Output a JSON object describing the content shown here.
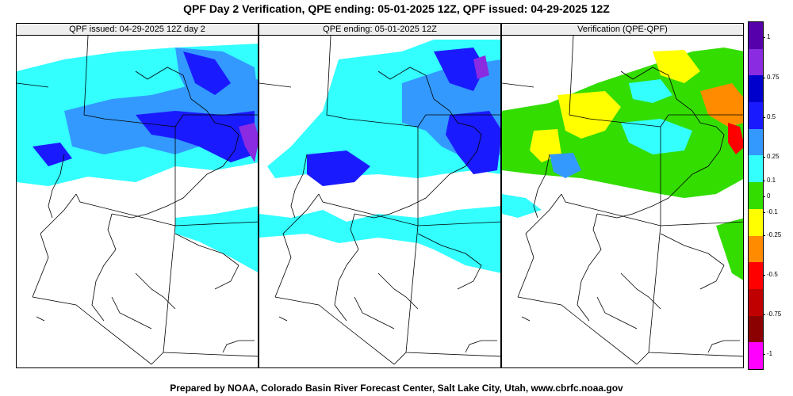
{
  "title": "QPF Day 2 Verification, QPE ending: 05-01-2025 12Z, QPF issued: 04-29-2025 12Z",
  "footer": "Prepared by NOAA, Colorado Basin River Forecast Center, Salt Lake City, Utah, www.cbrfc.noaa.gov",
  "panels": [
    {
      "label": "QPF issued: 04-29-2025 12Z day 2"
    },
    {
      "label": "QPE ending: 05-01-2025 12Z"
    },
    {
      "label": "Verification (QPE-QPF)"
    }
  ],
  "colorbar": {
    "colors": [
      "#ff00ff",
      "#8b0000",
      "#c00000",
      "#ff0000",
      "#ff8c00",
      "#ffff00",
      "#33dd00",
      "#33ffff",
      "#3399ff",
      "#1a1aff",
      "#0000cc",
      "#8a2be2",
      "#5500aa"
    ],
    "ticks": [
      "1",
      "0.75",
      "0.5",
      "0.25",
      "0.1",
      "0",
      "-0.1",
      "-0.25",
      "-0.5",
      "-0.75",
      "-1"
    ]
  },
  "palette": {
    "cyan": "#33ffff",
    "light_blue": "#3399ff",
    "blue": "#1a1aff",
    "dark_blue": "#0000cc",
    "purple": "#8a2be2",
    "green": "#33dd00",
    "yellow": "#ffff00",
    "orange": "#ff8c00",
    "red": "#ff0000"
  }
}
